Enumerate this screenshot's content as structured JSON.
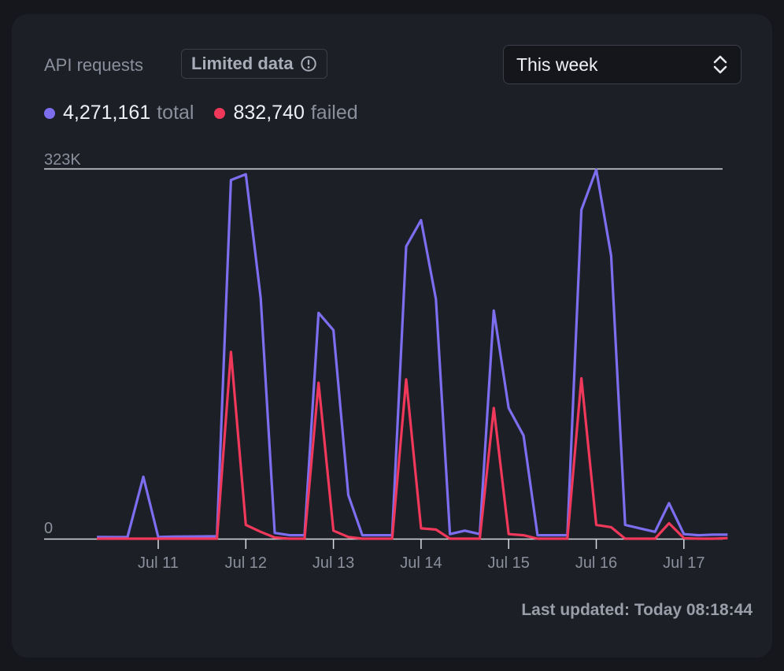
{
  "header": {
    "title": "API requests",
    "badge_label": "Limited data",
    "badge_icon": "info-circle-icon",
    "range_select": {
      "value": "This week",
      "icon": "chevron-up-down-icon"
    }
  },
  "legend": [
    {
      "value": "4,271,161",
      "unit": "total",
      "color": "#7d6ef0"
    },
    {
      "value": "832,740",
      "unit": "failed",
      "color": "#f0385a"
    }
  ],
  "chart_data": {
    "type": "line",
    "y_max_label": "323K",
    "y_min_label": "0",
    "ylim": [
      0,
      323000
    ],
    "x_ticks": [
      {
        "label": "Jul 11",
        "x": 11.0
      },
      {
        "label": "Jul 12",
        "x": 12.0
      },
      {
        "label": "Jul 13",
        "x": 13.0
      },
      {
        "label": "Jul 14",
        "x": 14.0
      },
      {
        "label": "Jul 15",
        "x": 15.0
      },
      {
        "label": "Jul 16",
        "x": 16.0
      },
      {
        "label": "Jul 17",
        "x": 17.0
      }
    ],
    "series": [
      {
        "name": "total",
        "color": "#7d6ef0",
        "points": [
          [
            10.3,
            1500
          ],
          [
            10.5,
            1400
          ],
          [
            10.65,
            1500
          ],
          [
            10.83,
            54000
          ],
          [
            11.0,
            1500
          ],
          [
            11.17,
            1800
          ],
          [
            11.33,
            1900
          ],
          [
            11.5,
            2000
          ],
          [
            11.67,
            2100
          ],
          [
            11.83,
            313000
          ],
          [
            12.0,
            318000
          ],
          [
            12.17,
            210000
          ],
          [
            12.33,
            5000
          ],
          [
            12.5,
            3000
          ],
          [
            12.67,
            3000
          ],
          [
            12.83,
            197000
          ],
          [
            13.0,
            182000
          ],
          [
            13.17,
            38000
          ],
          [
            13.33,
            3000
          ],
          [
            13.5,
            3000
          ],
          [
            13.67,
            3000
          ],
          [
            13.83,
            255000
          ],
          [
            14.0,
            278000
          ],
          [
            14.17,
            209000
          ],
          [
            14.33,
            4000
          ],
          [
            14.5,
            7000
          ],
          [
            14.67,
            4000
          ],
          [
            14.83,
            199000
          ],
          [
            15.0,
            114000
          ],
          [
            15.17,
            90000
          ],
          [
            15.33,
            3000
          ],
          [
            15.5,
            3000
          ],
          [
            15.67,
            3000
          ],
          [
            15.83,
            287000
          ],
          [
            16.0,
            322000
          ],
          [
            16.17,
            247000
          ],
          [
            16.33,
            12000
          ],
          [
            16.5,
            9000
          ],
          [
            16.67,
            6000
          ],
          [
            16.83,
            31000
          ],
          [
            17.0,
            4000
          ],
          [
            17.17,
            3000
          ],
          [
            17.33,
            3500
          ],
          [
            17.5,
            3500
          ]
        ]
      },
      {
        "name": "failed",
        "color": "#f0385a",
        "points": [
          [
            10.3,
            0
          ],
          [
            10.5,
            0
          ],
          [
            10.65,
            0
          ],
          [
            10.83,
            0
          ],
          [
            11.0,
            0
          ],
          [
            11.17,
            0
          ],
          [
            11.33,
            0
          ],
          [
            11.5,
            0
          ],
          [
            11.67,
            0
          ],
          [
            11.83,
            163000
          ],
          [
            12.0,
            12000
          ],
          [
            12.17,
            6000
          ],
          [
            12.33,
            1000
          ],
          [
            12.5,
            0
          ],
          [
            12.67,
            0
          ],
          [
            12.83,
            136000
          ],
          [
            13.0,
            7000
          ],
          [
            13.17,
            1500
          ],
          [
            13.33,
            0
          ],
          [
            13.5,
            0
          ],
          [
            13.67,
            0
          ],
          [
            13.83,
            139000
          ],
          [
            14.0,
            9000
          ],
          [
            14.17,
            8000
          ],
          [
            14.33,
            0
          ],
          [
            14.5,
            0
          ],
          [
            14.67,
            0
          ],
          [
            14.83,
            114000
          ],
          [
            15.0,
            4000
          ],
          [
            15.17,
            3000
          ],
          [
            15.33,
            0
          ],
          [
            15.5,
            0
          ],
          [
            15.67,
            0
          ],
          [
            15.83,
            140000
          ],
          [
            16.0,
            12000
          ],
          [
            16.17,
            10000
          ],
          [
            16.33,
            0
          ],
          [
            16.5,
            0
          ],
          [
            16.67,
            0
          ],
          [
            16.83,
            13500
          ],
          [
            17.0,
            500
          ],
          [
            17.17,
            0
          ],
          [
            17.33,
            0
          ],
          [
            17.5,
            500
          ]
        ]
      }
    ]
  },
  "footer": {
    "last_updated": "Last updated: Today 08:18:44"
  }
}
